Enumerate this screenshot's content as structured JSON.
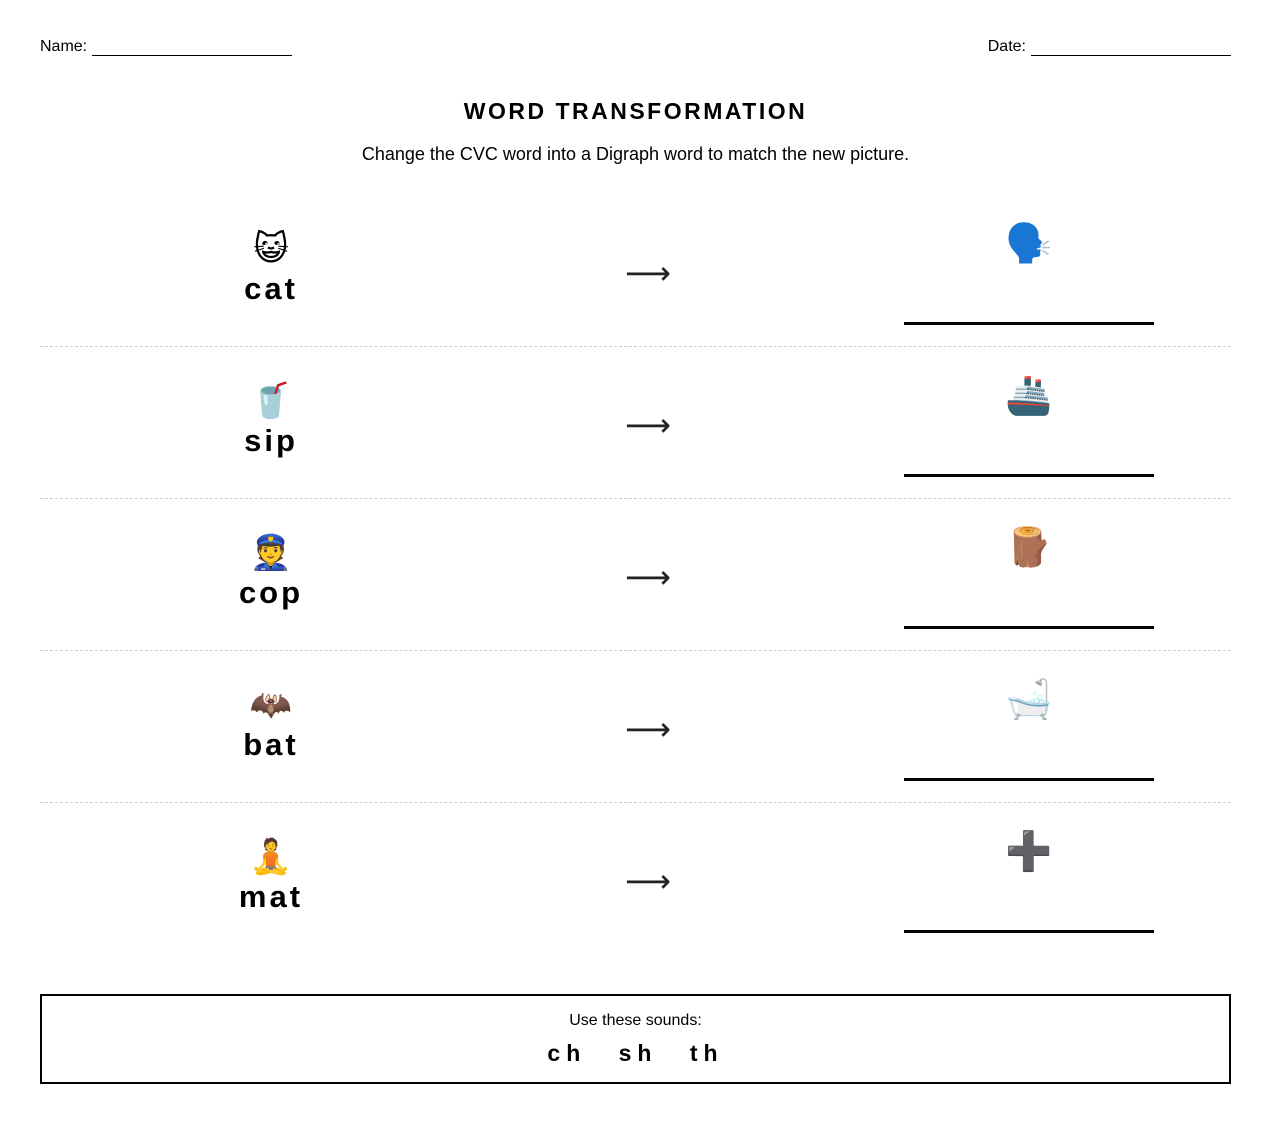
{
  "header": {
    "name_label": "Name:",
    "date_label": "Date:"
  },
  "title": "WORD TRANSFORMATION",
  "instructions": "Change the CVC word into a Digraph word to match the new picture.",
  "arrow_symbol": "⟶",
  "rows": [
    {
      "cvc_icon": "cat-face-icon",
      "cvc_emoji": "😺",
      "cvc_word": "cat",
      "target_icon": "speaking-head-icon",
      "target_emoji": "🗣️",
      "answer": ""
    },
    {
      "cvc_icon": "cup-with-straw-icon",
      "cvc_emoji": "🥤",
      "cvc_word": "sip",
      "target_icon": "ship-icon",
      "target_emoji": "🚢",
      "answer": ""
    },
    {
      "cvc_icon": "police-officer-icon",
      "cvc_emoji": "👮",
      "cvc_word": "cop",
      "target_icon": "log-icon",
      "target_emoji": "🪵",
      "answer": ""
    },
    {
      "cvc_icon": "bat-icon",
      "cvc_emoji": "🦇",
      "cvc_word": "bat",
      "target_icon": "bathtub-icon",
      "target_emoji": "🛁",
      "answer": ""
    },
    {
      "cvc_icon": "person-lotus-position-icon",
      "cvc_emoji": "🧘",
      "cvc_word": "mat",
      "target_icon": "plus-sign-icon",
      "target_emoji": "➕",
      "answer": ""
    }
  ],
  "sound_box": {
    "label": "Use these sounds:",
    "sounds": [
      "ch",
      "sh",
      "th"
    ]
  }
}
